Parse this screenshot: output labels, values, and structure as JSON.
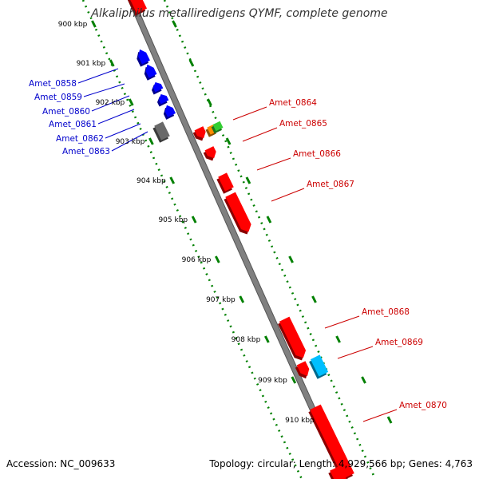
{
  "title": "Alkaliphilus metalliredigens QYMF, complete genome",
  "footer": {
    "accession": "Accession: NC_009633",
    "stats": "Topology: circular; Length: 4,929,566 bp; Genes: 4,763"
  },
  "colors": {
    "backbone": "#808080",
    "tick_ring": "#008000",
    "reverse_label": "#0000cc",
    "forward_label": "#cc0000"
  },
  "kbp_labels": [
    "900 kbp",
    "901 kbp",
    "902 kbp",
    "903 kbp",
    "904 kbp",
    "905 kbp",
    "906 kbp",
    "907 kbp",
    "908 kbp",
    "909 kbp",
    "910 kbp"
  ],
  "reverse_genes": [
    {
      "name": "Amet_0858",
      "color": "#0000ff"
    },
    {
      "name": "Amet_0859",
      "color": "#0000ff"
    },
    {
      "name": "Amet_0860",
      "color": "#0000ff"
    },
    {
      "name": "Amet_0861",
      "color": "#0000ff"
    },
    {
      "name": "Amet_0862",
      "color": "#0000ff"
    },
    {
      "name": "Amet_0863",
      "color": "#696969"
    }
  ],
  "forward_genes": [
    {
      "name": "Amet_0864",
      "color": "#ff8c00"
    },
    {
      "name": "Amet_0865",
      "color": "#ff0000"
    },
    {
      "name": "Amet_0866",
      "color": "#ff0000"
    },
    {
      "name": "Amet_0867",
      "color": "#ff0000"
    },
    {
      "name": "Amet_0868",
      "color": "#ff0000"
    },
    {
      "name": "Amet_0869",
      "color": "#00bfff"
    },
    {
      "name": "Amet_0870",
      "color": "#ff0000"
    }
  ],
  "unlabeled_features": [
    {
      "color": "#32cd32"
    },
    {
      "color": "#ff0000"
    },
    {
      "color": "#ff0000"
    },
    {
      "color": "#ff0000"
    }
  ]
}
